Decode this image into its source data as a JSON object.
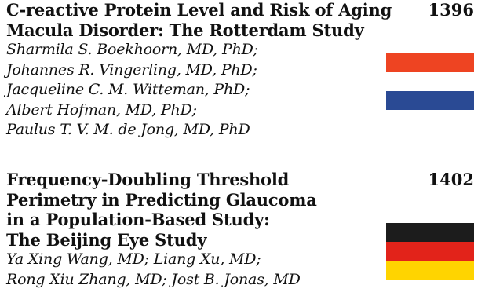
{
  "entries": [
    {
      "title_lines": [
        "C-reactive Protein Level and Risk of Aging",
        "Macula Disorder: The Rotterdam Study"
      ],
      "authors_lines": [
        "Sharmila S. Boekhoorn, MD, PhD;",
        "Johannes R. Vingerling, MD, PhD;",
        "Jacqueline C. M. Witteman, PhD;",
        "Albert Hofman, MD, PhD;",
        "Paulus T. V. M. de Jong, MD, PhD"
      ],
      "page": "1396",
      "flag": {
        "icon": "netherlands-flag-icon",
        "stripes": [
          "#ee4422",
          "#ffffff",
          "#2a4a94"
        ]
      }
    },
    {
      "title_lines": [
        "Frequency-Doubling Threshold",
        "Perimetry in Predicting Glaucoma",
        "in a Population-Based Study:",
        "The Beijing Eye Study"
      ],
      "authors_lines": [
        "Ya Xing Wang, MD; Liang Xu, MD;",
        "Rong Xiu Zhang, MD; Jost B. Jonas, MD"
      ],
      "page": "1402",
      "flag": {
        "icon": "germany-flag-icon",
        "stripes": [
          "#1c1c1c",
          "#e2231a",
          "#ffd400"
        ]
      }
    }
  ]
}
